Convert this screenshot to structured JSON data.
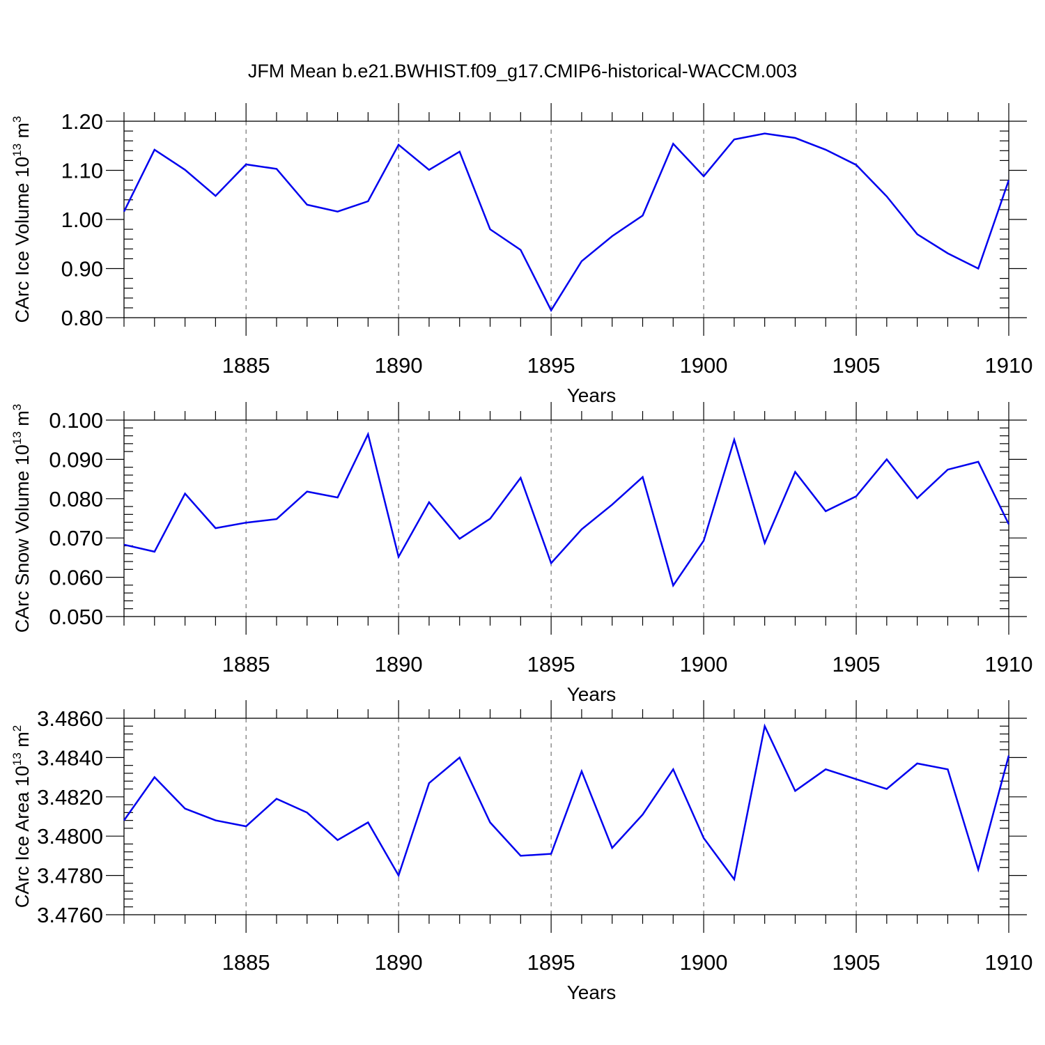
{
  "title": "JFM Mean b.e21.BWHIST.f09_g17.CMIP6-historical-WACCM.003",
  "series_color": "#0000ee",
  "chart_data": [
    {
      "type": "line",
      "ylabel": "CArc Ice Volume 10",
      "ylabel_exp": "13",
      "ylabel_unit": " m",
      "ylabel_unit_exp": "3",
      "xlabel": "Years",
      "xlim": [
        1881,
        1910
      ],
      "ylim": [
        0.8,
        1.2
      ],
      "xticks": [
        "1885",
        "1890",
        "1895",
        "1900",
        "1905",
        "1910"
      ],
      "xtick_values": [
        1885,
        1890,
        1895,
        1900,
        1905,
        1910
      ],
      "yticks": [
        "0.80",
        "0.90",
        "1.00",
        "1.10",
        "1.20"
      ],
      "ytick_values": [
        0.8,
        0.9,
        1.0,
        1.1,
        1.2
      ],
      "x": [
        1881,
        1882,
        1883,
        1884,
        1885,
        1886,
        1887,
        1888,
        1889,
        1890,
        1891,
        1892,
        1893,
        1894,
        1895,
        1896,
        1897,
        1898,
        1899,
        1900,
        1901,
        1902,
        1903,
        1904,
        1905,
        1906,
        1907,
        1908,
        1909,
        1910
      ],
      "y": [
        1.016,
        1.142,
        1.101,
        1.048,
        1.112,
        1.103,
        1.03,
        1.016,
        1.037,
        1.152,
        1.101,
        1.138,
        0.98,
        0.938,
        0.815,
        0.915,
        0.966,
        1.008,
        1.154,
        1.088,
        1.163,
        1.175,
        1.166,
        1.142,
        1.111,
        1.047,
        0.97,
        0.931,
        0.9,
        1.08
      ]
    },
    {
      "type": "line",
      "ylabel": "CArc Snow Volume 10",
      "ylabel_exp": "13",
      "ylabel_unit": " m",
      "ylabel_unit_exp": "3",
      "xlabel": "Years",
      "xlim": [
        1881,
        1910
      ],
      "ylim": [
        0.05,
        0.1
      ],
      "xticks": [
        "1885",
        "1890",
        "1895",
        "1900",
        "1905",
        "1910"
      ],
      "xtick_values": [
        1885,
        1890,
        1895,
        1900,
        1905,
        1910
      ],
      "yticks": [
        "0.050",
        "0.060",
        "0.070",
        "0.080",
        "0.090",
        "0.100"
      ],
      "ytick_values": [
        0.05,
        0.06,
        0.07,
        0.08,
        0.09,
        0.1
      ],
      "x": [
        1881,
        1882,
        1883,
        1884,
        1885,
        1886,
        1887,
        1888,
        1889,
        1890,
        1891,
        1892,
        1893,
        1894,
        1895,
        1896,
        1897,
        1898,
        1899,
        1900,
        1901,
        1902,
        1903,
        1904,
        1905,
        1906,
        1907,
        1908,
        1909,
        1910
      ],
      "y": [
        0.0683,
        0.0665,
        0.0813,
        0.0725,
        0.0739,
        0.0748,
        0.0818,
        0.0803,
        0.0964,
        0.0652,
        0.0791,
        0.0698,
        0.0749,
        0.0853,
        0.0636,
        0.0722,
        0.0785,
        0.0855,
        0.0579,
        0.0693,
        0.095,
        0.0687,
        0.0868,
        0.0768,
        0.0806,
        0.09,
        0.0801,
        0.0874,
        0.0894,
        0.0735
      ]
    },
    {
      "type": "line",
      "ylabel": "CArc Ice Area 10",
      "ylabel_exp": "13",
      "ylabel_unit": " m",
      "ylabel_unit_exp": "2",
      "xlabel": "Years",
      "xlim": [
        1881,
        1910
      ],
      "ylim": [
        3.476,
        3.486
      ],
      "xticks": [
        "1885",
        "1890",
        "1895",
        "1900",
        "1905",
        "1910"
      ],
      "xtick_values": [
        1885,
        1890,
        1895,
        1900,
        1905,
        1910
      ],
      "yticks": [
        "3.4760",
        "3.4780",
        "3.4800",
        "3.4820",
        "3.4840",
        "3.4860"
      ],
      "ytick_values": [
        3.476,
        3.478,
        3.48,
        3.482,
        3.484,
        3.486
      ],
      "x": [
        1881,
        1882,
        1883,
        1884,
        1885,
        1886,
        1887,
        1888,
        1889,
        1890,
        1891,
        1892,
        1893,
        1894,
        1895,
        1896,
        1897,
        1898,
        1899,
        1900,
        1901,
        1902,
        1903,
        1904,
        1905,
        1906,
        1907,
        1908,
        1909,
        1910
      ],
      "y": [
        3.4808,
        3.483,
        3.4814,
        3.4808,
        3.4805,
        3.4819,
        3.4812,
        3.4798,
        3.4807,
        3.478,
        3.4827,
        3.484,
        3.4807,
        3.479,
        3.4791,
        3.4833,
        3.4794,
        3.4811,
        3.4834,
        3.4799,
        3.4778,
        3.4856,
        3.4823,
        3.4834,
        3.4829,
        3.4824,
        3.4837,
        3.4834,
        3.4783,
        3.4841
      ]
    }
  ]
}
